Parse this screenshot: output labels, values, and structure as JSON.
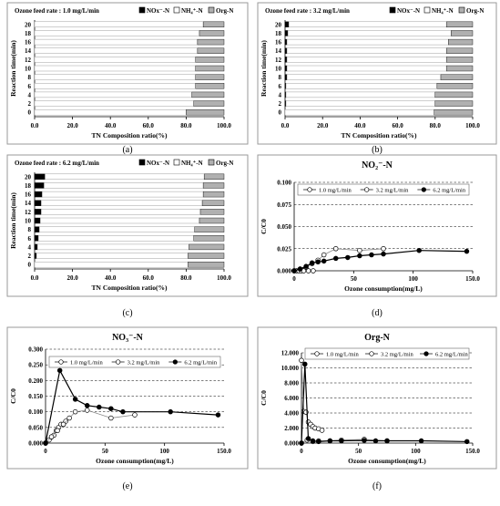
{
  "chart_data": [
    {
      "id": "a",
      "type": "bar",
      "subtitle": "Ozone feed rate : 1.0 mg/L/min",
      "xlabel": "TN Composition ratio(%)",
      "ylabel": "Reaction time(min)",
      "xticks": [
        "0.0",
        "20.0",
        "40.0",
        "60.0",
        "80.0",
        "100.0"
      ],
      "categories": [
        "0",
        "2",
        "4",
        "6",
        "8",
        "10",
        "12",
        "14",
        "16",
        "18",
        "20"
      ],
      "series": [
        {
          "name": "NOx⁻-N",
          "color": "#000000",
          "values": [
            0,
            0,
            0,
            0,
            0,
            0,
            0,
            0,
            0,
            0,
            0
          ]
        },
        {
          "name": "NH₄⁺-N",
          "color": "#ffffff",
          "values": [
            80,
            84,
            83,
            85,
            85,
            85,
            85,
            86,
            86,
            87,
            89
          ]
        },
        {
          "name": "Org-N",
          "color": "#b0b0b0",
          "values": [
            20,
            16,
            17,
            15,
            15,
            15,
            15,
            14,
            14,
            13,
            11
          ]
        }
      ],
      "caption": "(a)"
    },
    {
      "id": "b",
      "type": "bar",
      "subtitle": "Ozone feed rate : 3.2 mg/L/min",
      "xlabel": "TN Composition ratio(%)",
      "ylabel": "Reaction time(min)",
      "xticks": [
        "0.0",
        "20.0",
        "40.0",
        "60.0",
        "80.0",
        "100.0"
      ],
      "categories": [
        "0",
        "2",
        "4",
        "6",
        "8",
        "10",
        "12",
        "14",
        "16",
        "18",
        "20"
      ],
      "series": [
        {
          "name": "NOx⁻-N",
          "color": "#000000",
          "values": [
            0,
            0.5,
            0.5,
            0.5,
            1,
            1,
            1,
            1,
            1,
            1.5,
            2
          ]
        },
        {
          "name": "NH₄⁺-N",
          "color": "#ffffff",
          "values": [
            79.5,
            79.5,
            79.5,
            80.5,
            82,
            85,
            85,
            85,
            86,
            87,
            84
          ]
        },
        {
          "name": "Org-N",
          "color": "#b0b0b0",
          "values": [
            20.5,
            20,
            20,
            19,
            17,
            14,
            14,
            14,
            13,
            11.5,
            14
          ]
        }
      ],
      "caption": "(b)"
    },
    {
      "id": "c",
      "type": "bar",
      "subtitle": "Ozone feed rate : 6.2 mg/L/min",
      "xlabel": "TN Composition ratio(%)",
      "ylabel": "Reaction time(min)",
      "xticks": [
        "0.0",
        "20.0",
        "40.0",
        "60.0",
        "80.0",
        "100.0"
      ],
      "categories": [
        "0",
        "2",
        "4",
        "6",
        "8",
        "10",
        "12",
        "14",
        "16",
        "18",
        "20"
      ],
      "series": [
        {
          "name": "NOx⁻-N",
          "color": "#000000",
          "values": [
            0,
            1,
            1.5,
            2,
            2.5,
            3,
            3.5,
            3.5,
            4,
            5,
            5.5
          ]
        },
        {
          "name": "NH₄⁺-N",
          "color": "#ffffff",
          "values": [
            81,
            80,
            80,
            82,
            82,
            84,
            84,
            85,
            85,
            84,
            84
          ]
        },
        {
          "name": "Org-N",
          "color": "#b0b0b0",
          "values": [
            19,
            19,
            18.5,
            16,
            15.5,
            13,
            12.5,
            11.5,
            11,
            11,
            10.5
          ]
        }
      ],
      "caption": "(c)"
    },
    {
      "id": "d",
      "type": "line",
      "title": "NO₂⁻-N",
      "xlabel": "Ozone consumption(mg/L)",
      "ylabel": "C/C0",
      "xlim": [
        0,
        150
      ],
      "ylim": [
        0,
        0.1
      ],
      "xticks": [
        "0",
        "50",
        "100",
        "150.0"
      ],
      "xtick_values": [
        0,
        50,
        100,
        150
      ],
      "yticks": [
        "0.000",
        "0.025",
        "0.050",
        "0.075",
        "0.100"
      ],
      "ytick_values": [
        0,
        0.025,
        0.05,
        0.075,
        0.1
      ],
      "series": [
        {
          "name": "1.0 mg/L/min",
          "marker": "open",
          "x": [
            0,
            2,
            4,
            6,
            8,
            12,
            16
          ],
          "y": [
            0,
            0,
            0,
            0,
            0,
            0,
            0
          ]
        },
        {
          "name": "3.2 mg/L/min",
          "marker": "open",
          "x": [
            0,
            5,
            10,
            15,
            20,
            25,
            35,
            55,
            75
          ],
          "y": [
            0,
            0.002,
            0.004,
            0.008,
            0.012,
            0.018,
            0.025,
            0.023,
            0.025
          ]
        },
        {
          "name": "6.2 mg/L/min",
          "marker": "filled",
          "x": [
            0,
            5,
            10,
            15,
            20,
            25,
            35,
            45,
            55,
            65,
            75,
            105,
            145
          ],
          "y": [
            0,
            0.002,
            0.005,
            0.009,
            0.01,
            0.011,
            0.014,
            0.015,
            0.017,
            0.018,
            0.019,
            0.023,
            0.022
          ]
        }
      ],
      "caption": "(d)"
    },
    {
      "id": "e",
      "type": "line",
      "title": "NO₃⁻-N",
      "xlabel": "Ozone consumption(mg/L)",
      "ylabel": "C/C0",
      "xlim": [
        0,
        150
      ],
      "ylim": [
        0,
        0.3
      ],
      "xticks": [
        "0",
        "50",
        "100",
        "150.0"
      ],
      "xtick_values": [
        0,
        50,
        100,
        150
      ],
      "yticks": [
        "0.000",
        "0.050",
        "0.100",
        "0.150",
        "0.200",
        "0.250",
        "0.300"
      ],
      "ytick_values": [
        0,
        0.05,
        0.1,
        0.15,
        0.2,
        0.25,
        0.3
      ],
      "series": [
        {
          "name": "1.0 mg/L/min",
          "marker": "open",
          "x": [
            0,
            3,
            5,
            7,
            9,
            11,
            13,
            15,
            17
          ],
          "y": [
            0,
            0.01,
            0.02,
            0.025,
            0.04,
            0.05,
            0.06,
            0.06,
            0.07
          ]
        },
        {
          "name": "3.2 mg/L/min",
          "marker": "open",
          "x": [
            0,
            5,
            10,
            15,
            20,
            25,
            35,
            55,
            75
          ],
          "y": [
            0,
            0.02,
            0.04,
            0.06,
            0.08,
            0.1,
            0.105,
            0.08,
            0.09
          ]
        },
        {
          "name": "6.2 mg/L/min",
          "marker": "filled",
          "x": [
            0,
            12,
            25,
            35,
            45,
            55,
            65,
            105,
            145
          ],
          "y": [
            0,
            0.232,
            0.14,
            0.12,
            0.115,
            0.11,
            0.1,
            0.1,
            0.09
          ]
        }
      ],
      "caption": "(e)"
    },
    {
      "id": "f",
      "type": "line",
      "title": "Org-N",
      "xlabel": "Ozone consumption(mg/L)",
      "ylabel": "C/C0",
      "xlim": [
        0,
        150
      ],
      "ylim": [
        0,
        12
      ],
      "xticks": [
        "0",
        "50",
        "100",
        "150.0"
      ],
      "xtick_values": [
        0,
        50,
        100,
        150
      ],
      "yticks": [
        "0.000",
        "2.000",
        "4.000",
        "6.000",
        "8.000",
        "10.000",
        "12.000"
      ],
      "ytick_values": [
        0,
        2,
        4,
        6,
        8,
        10,
        12
      ],
      "series": [
        {
          "name": "1.0 mg/L/min",
          "marker": "open",
          "x": [
            0,
            2,
            4,
            6,
            8,
            10,
            12,
            15,
            18
          ],
          "y": [
            11.0,
            4.2,
            4.1,
            2.8,
            2.5,
            2.2,
            2.0,
            1.9,
            1.7
          ]
        },
        {
          "name": "3.2 mg/L/min",
          "marker": "open",
          "x": [
            0,
            5,
            10,
            15,
            25,
            35,
            55,
            75
          ],
          "y": [
            0,
            0.4,
            0.2,
            0.3,
            0.3,
            0.4,
            0.5,
            0.3
          ]
        },
        {
          "name": "6.2 mg/L/min",
          "marker": "filled",
          "x": [
            0,
            3,
            6,
            10,
            15,
            25,
            35,
            55,
            65,
            75,
            105,
            145
          ],
          "y": [
            0,
            10.5,
            0.6,
            0.3,
            0.2,
            0.3,
            0.3,
            0.35,
            0.3,
            0.3,
            0.3,
            0.2
          ]
        }
      ],
      "caption": "(f)"
    }
  ]
}
